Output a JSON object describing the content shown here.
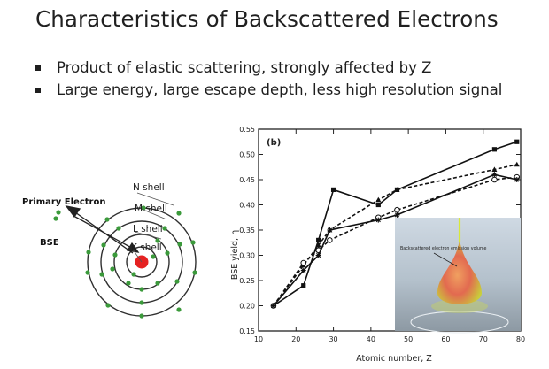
{
  "slide": {
    "title": "Characteristics of Backscattered Electrons",
    "bullets": [
      "Product of elastic scattering, strongly affected by Z",
      "Large energy, large escape depth, less high resolution signal"
    ]
  },
  "atom_diagram": {
    "primary_label": "Primary Electron",
    "bse_label": "BSE",
    "shells": [
      "N shell",
      "M shell",
      "L shell",
      "K shell"
    ]
  },
  "inset": {
    "label": "Backscattered electron emission volume"
  },
  "chart_data": {
    "type": "line",
    "panel_label": "(b)",
    "xlabel": "Atomic number, Z",
    "ylabel": "BSE yield, η",
    "xlim": [
      10,
      80
    ],
    "ylim": [
      0.15,
      0.55
    ],
    "xticks": [
      "10",
      "20",
      "30",
      "40",
      "50",
      "60",
      "70",
      "80"
    ],
    "yticks": [
      "0.15",
      "0.20",
      "0.25",
      "0.30",
      "0.35",
      "0.40",
      "0.45",
      "0.50",
      "0.55"
    ],
    "grid": false,
    "series": [
      {
        "style": "solid",
        "marker": "square-filled",
        "x": [
          14,
          22,
          26,
          30,
          42,
          47,
          73,
          79
        ],
        "y": [
          0.2,
          0.24,
          0.33,
          0.43,
          0.4,
          0.43,
          0.51,
          0.525
        ]
      },
      {
        "style": "dashed",
        "marker": "triangle-filled",
        "x": [
          14,
          22,
          26,
          29,
          42,
          47,
          73,
          79
        ],
        "y": [
          0.2,
          0.28,
          0.32,
          0.35,
          0.41,
          0.43,
          0.47,
          0.48
        ]
      },
      {
        "style": "dashed",
        "marker": "circle-open",
        "x": [
          14,
          22,
          26,
          29,
          42,
          47,
          73,
          79
        ],
        "y": [
          0.2,
          0.285,
          0.31,
          0.33,
          0.375,
          0.39,
          0.45,
          0.455
        ]
      },
      {
        "style": "solid",
        "marker": "star",
        "x": [
          14,
          22,
          26,
          29,
          42,
          47,
          73,
          79
        ],
        "y": [
          0.2,
          0.27,
          0.3,
          0.35,
          0.37,
          0.38,
          0.46,
          0.45
        ]
      }
    ]
  }
}
